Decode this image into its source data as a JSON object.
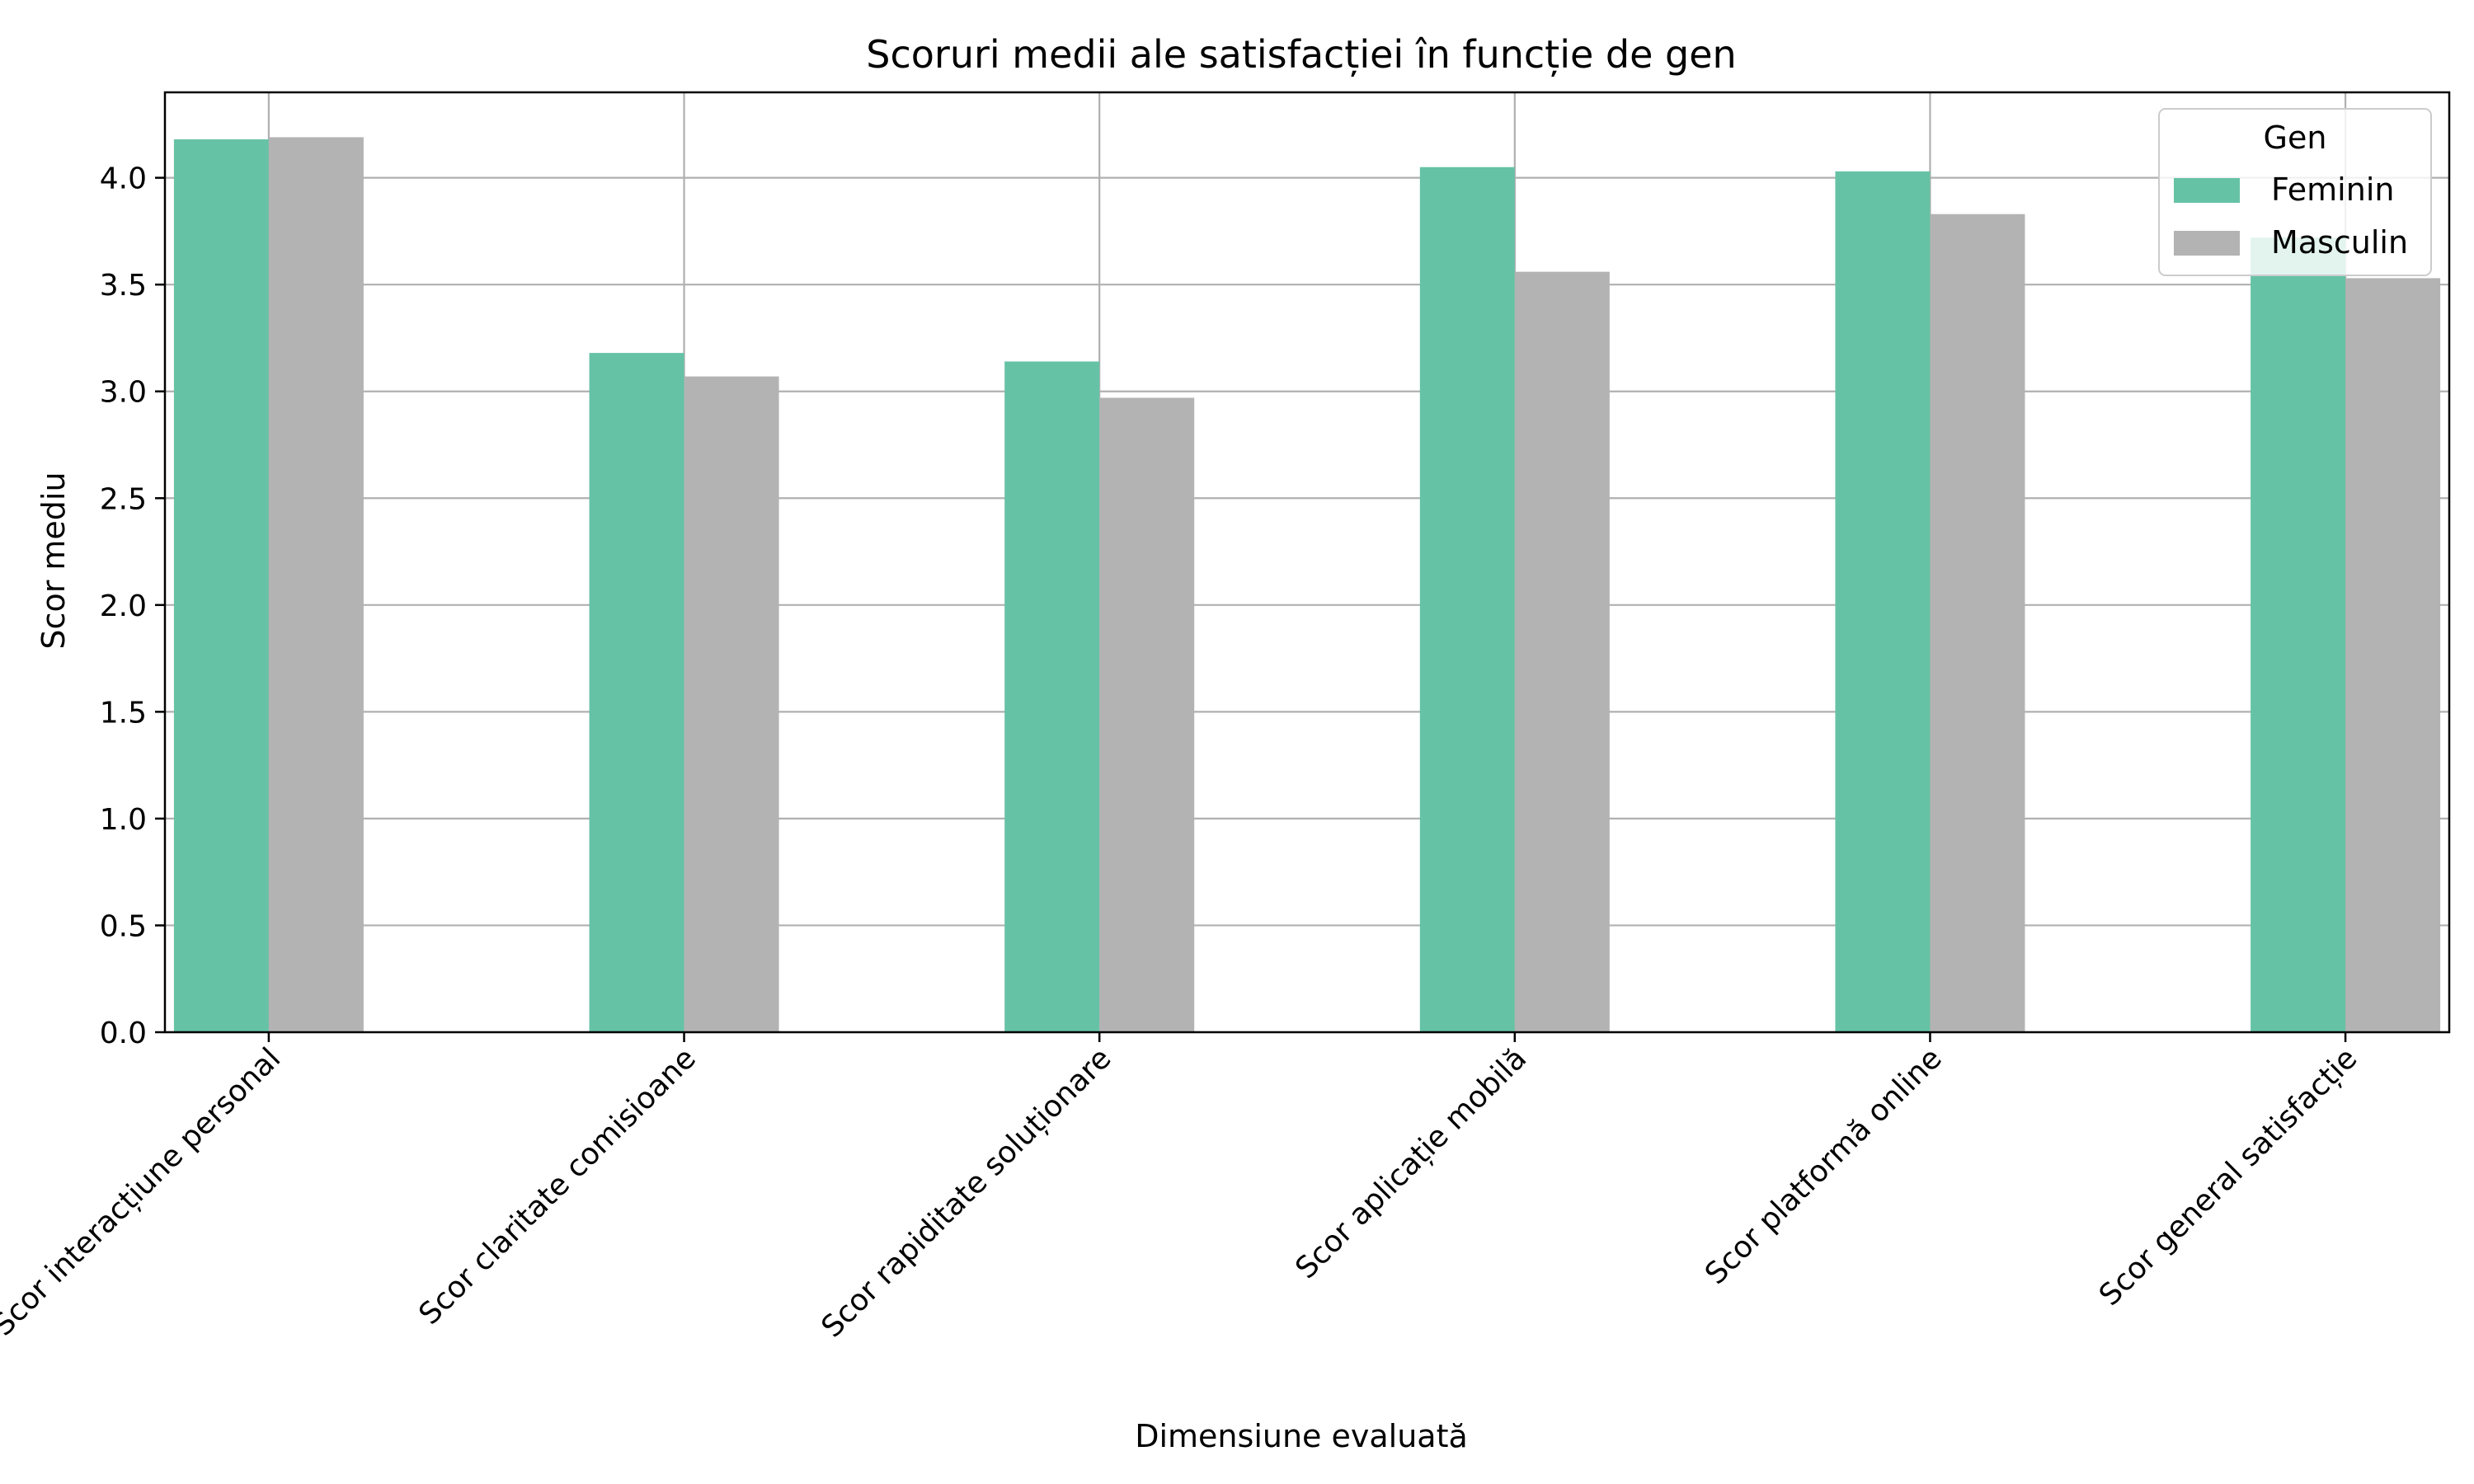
{
  "chart_data": {
    "type": "bar",
    "title": "Scoruri medii ale satisfacției în funcție de gen",
    "xlabel": "Dimensiune evaluată",
    "ylabel": "Scor mediu",
    "ylim": [
      0,
      4.4
    ],
    "yticks": [
      0.0,
      0.5,
      1.0,
      1.5,
      2.0,
      2.5,
      3.0,
      3.5,
      4.0
    ],
    "grid": true,
    "categories": [
      "Scor interacțiune personal",
      "Scor claritate comisioane",
      "Scor rapiditate soluționare",
      "Scor aplicație mobilă",
      "Scor platformă online",
      "Scor general satisfacție"
    ],
    "series": [
      {
        "name": "Feminin",
        "color": "#66c2a5",
        "values": [
          4.18,
          3.18,
          3.14,
          4.05,
          4.03,
          3.72
        ]
      },
      {
        "name": "Masculin",
        "color": "#b3b3b3",
        "values": [
          4.19,
          3.07,
          2.97,
          3.56,
          3.83,
          3.53
        ]
      }
    ],
    "legend": {
      "title": "Gen",
      "position": "top-right"
    }
  }
}
